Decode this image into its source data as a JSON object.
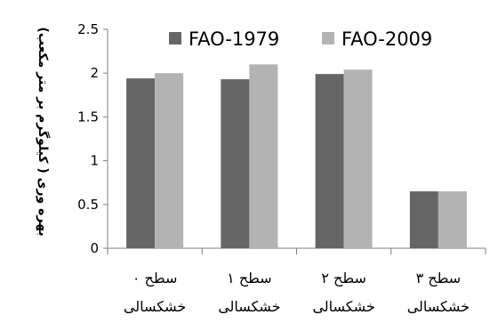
{
  "chart_data": {
    "type": "bar",
    "title": "",
    "ylabel": "بهره وری ( کیلوگرم بر متر مکعب)",
    "xlabel": "",
    "ylim": [
      0,
      2.5
    ],
    "yticks": [
      "0",
      "0.5",
      "1",
      "1.5",
      "2",
      "2.5"
    ],
    "ytick_values": [
      0,
      0.5,
      1,
      1.5,
      2,
      2.5
    ],
    "grid": false,
    "legend_position": "top",
    "categories": [
      [
        "سطح ۰",
        "خشکسالی"
      ],
      [
        "سطح ۱",
        "خشکسالی"
      ],
      [
        "سطح ۲",
        "خشکسالی"
      ],
      [
        "سطح ۳",
        "خشکسالی"
      ]
    ],
    "series": [
      {
        "name": "FAO-1979",
        "color": "#666666",
        "values": [
          1.94,
          1.93,
          1.99,
          0.65
        ]
      },
      {
        "name": "FAO-2009",
        "color": "#b3b3b3",
        "values": [
          2.0,
          2.1,
          2.04,
          0.65
        ]
      }
    ]
  }
}
